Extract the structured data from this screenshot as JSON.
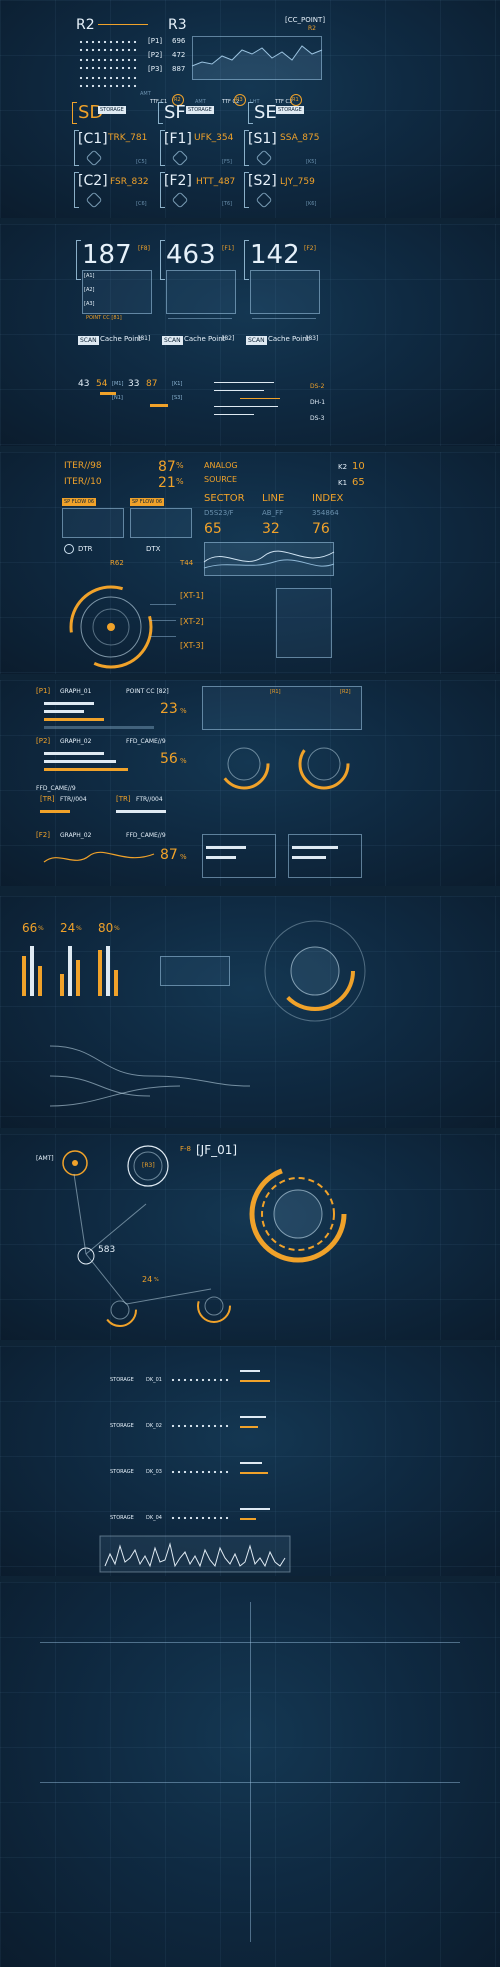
{
  "colors": {
    "bg": "#0e2335",
    "accent": "#f0a22a",
    "line": "#dfeaf3"
  },
  "s1": {
    "r2": "R2",
    "r3": "R3",
    "cc_point": "[CC_POINT]",
    "r2_tag": "R2",
    "p1": "[P1]",
    "p2": "[P2]",
    "p3": "[P3]",
    "v1": "696",
    "v2": "472",
    "v3": "887",
    "chart_labels": [
      "AMT",
      "TTF C1",
      "AMT",
      "TTF C2",
      "LHT",
      "TTF C3"
    ],
    "chart_tags": [
      "R2",
      "R3",
      "R1"
    ],
    "sd": "SD",
    "sf": "SF",
    "se": "SE",
    "cards": [
      {
        "id": "[C1]",
        "code": "TRK_781",
        "tag": "[C5]"
      },
      {
        "id": "[F1]",
        "code": "UFK_354",
        "tag": "[F5]"
      },
      {
        "id": "[S1]",
        "code": "SSA_875",
        "tag": "[K5]"
      },
      {
        "id": "[C2]",
        "code": "FSR_832",
        "tag": "[C6]"
      },
      {
        "id": "[F2]",
        "code": "HTT_487",
        "tag": "[T6]"
      },
      {
        "id": "[S2]",
        "code": "LJY_759",
        "tag": "[K6]"
      }
    ]
  },
  "s2": {
    "big": [
      "187",
      "463",
      "142"
    ],
    "big_tags": [
      "[F8]",
      "[F1]",
      "[F2]"
    ],
    "rows": [
      "[A1]",
      "[A2]",
      "[A3]"
    ],
    "point_cc": "POINT CC [81]",
    "scan": "SCAN",
    "cache": "Cache Point",
    "cache_tags": [
      "[81]",
      "[82]",
      "[83]"
    ],
    "mini": [
      "43",
      "54",
      "33",
      "87"
    ],
    "mini_tags": [
      "[M1]",
      "[N1]",
      "[K1]",
      "[S3]"
    ],
    "ds": [
      "DS-2",
      "DH-1",
      "DS-3"
    ]
  },
  "s3": {
    "iter1": "ITER//98",
    "iter2": "ITER//10",
    "pct1": "87",
    "pct2": "21",
    "pct_sign": "%",
    "analog": "ANALOG",
    "source": "SOURCE",
    "k2": "K2",
    "val10": "10",
    "k1": "K1",
    "val65": "65",
    "sector": "SECTOR",
    "line": "LINE",
    "index": "INDEX",
    "sector_v": "D5S23/F",
    "line_v": "AB_FF",
    "index_v": "354864",
    "n65": "65",
    "n32": "32",
    "n76": "76",
    "dtr": "DTR",
    "dtx": "DTX",
    "r62": "R62",
    "t44": "T44",
    "xt1": "[XT-1]",
    "xt2": "[XT-2]",
    "xt3": "[XT-3]"
  },
  "s4": {
    "p1": "[P1]",
    "graph01": "GRAPH_01",
    "pointcc": "POINT CC [82]",
    "pct1": "23",
    "p2": "[P2]",
    "graph02": "GRAPH_02",
    "ffd": "FFD_CAME//9",
    "pct2": "56",
    "ffd2": "FFD_CAME//9",
    "tr": "[TR]",
    "ftr1": "FTR//004",
    "ftr2": "FTR//004",
    "f2": "[F2]",
    "graph03": "GRAPH_02",
    "ffd3": "FFD_CAME//9",
    "pct3": "87",
    "sign": "%",
    "r1": "[R1]",
    "r2": "[R2]"
  },
  "s5": {
    "p1": "66",
    "p2": "24",
    "p3": "80",
    "sign": "%"
  },
  "s6": {
    "amt": "[AMT]",
    "r3": "[R3]",
    "f8": "F-8",
    "jf": "[JF_01]",
    "s583": "583",
    "pct": "24",
    "sign": "%"
  },
  "s7": {
    "storage": [
      "STORAGE",
      "STORAGE",
      "STORAGE",
      "STORAGE"
    ],
    "dk": [
      "DK_01",
      "DK_02",
      "DK_03",
      "DK_04"
    ]
  }
}
